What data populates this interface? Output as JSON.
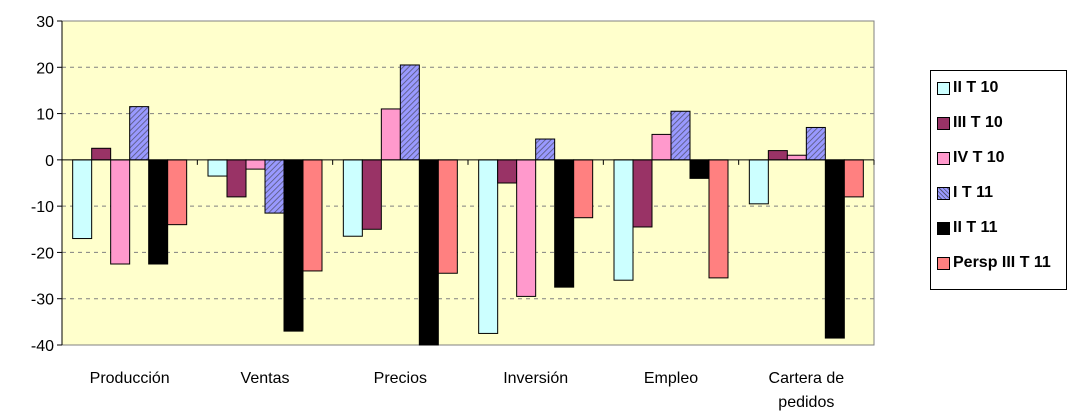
{
  "chart_data": {
    "type": "bar",
    "title": "",
    "xlabel": "",
    "ylabel": "",
    "ylim": [
      -40,
      30
    ],
    "yticks": [
      30,
      20,
      10,
      0,
      -10,
      -20,
      -30,
      -40
    ],
    "ytick_labels": [
      "30",
      "20",
      "10",
      "0",
      "-10",
      "-20",
      "-30",
      "-40"
    ],
    "grid": true,
    "legend_position": "right",
    "plot_background": "#ffffcc",
    "categories": [
      "Producción",
      "Ventas",
      "Precios",
      "Inversión",
      "Empleo",
      "Cartera de pedidos"
    ],
    "category_lines": [
      [
        "Producción"
      ],
      [
        "Ventas"
      ],
      [
        "Precios"
      ],
      [
        "Inversión"
      ],
      [
        "Empleo"
      ],
      [
        "Cartera de",
        "pedidos"
      ]
    ],
    "series": [
      {
        "name": "II T 10",
        "color": "#ccffff",
        "pattern": "solid",
        "values": [
          -17,
          -3.5,
          -16.5,
          -37.5,
          -26,
          -9.5
        ]
      },
      {
        "name": "III T 10",
        "color": "#993366",
        "pattern": "solid",
        "values": [
          2.5,
          -8,
          -15,
          -5,
          -14.5,
          2
        ]
      },
      {
        "name": "IV T 10",
        "color": "#ff99cc",
        "pattern": "solid",
        "values": [
          -22.5,
          -2,
          11,
          -29.5,
          5.5,
          1
        ]
      },
      {
        "name": "I T 11",
        "color": "#9999ff",
        "pattern": "hatch",
        "values": [
          11.5,
          -11.5,
          20.5,
          4.5,
          10.5,
          7
        ]
      },
      {
        "name": "II T 11",
        "color": "#000000",
        "pattern": "solid",
        "values": [
          -22.5,
          -37,
          -40,
          -27.5,
          -4,
          -38.5
        ]
      },
      {
        "name": "Persp III T 11",
        "color": "#ff8080",
        "pattern": "solid",
        "values": [
          -14,
          -24,
          -24.5,
          -12.5,
          -25.5,
          -8
        ]
      }
    ]
  }
}
